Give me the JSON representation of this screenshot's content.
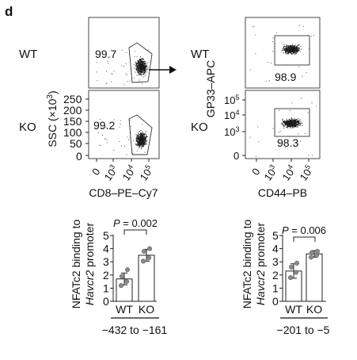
{
  "panel_label": "d",
  "flow": {
    "row_labels": [
      "WT",
      "KO"
    ],
    "left": {
      "percents": [
        "99.7",
        "99.2"
      ],
      "ylabel": "SSC (×10",
      "ylabel_exp": "3",
      "ylabel_close": ")",
      "yticks": [
        "250",
        "200",
        "150",
        "100",
        "50",
        "0"
      ],
      "xticks": [
        "0",
        "10",
        "10",
        "10"
      ],
      "xtick_exps": [
        "",
        "3",
        "4",
        "5"
      ],
      "xlabel": "CD8–PE–Cy7"
    },
    "right": {
      "percents": [
        "98.9",
        "98.3"
      ],
      "ylabel": "GP33–APC",
      "yticks": [
        "10",
        "10",
        "10",
        "0"
      ],
      "ytick_exps": [
        "5",
        "4",
        "3",
        ""
      ],
      "xticks": [
        "0",
        "10",
        "10",
        "10"
      ],
      "xtick_exps": [
        "",
        "3",
        "4",
        "5"
      ],
      "xlabel": "CD44–PB"
    }
  },
  "chart_data": [
    {
      "type": "bar",
      "categories": [
        "WT",
        "KO"
      ],
      "values": [
        1.7,
        3.5
      ],
      "error": [
        0.45,
        0.45
      ],
      "points": [
        [
          1.2,
          1.5,
          1.9,
          2.4
        ],
        [
          3.05,
          3.3,
          3.8,
          4.0
        ]
      ],
      "ylabel_line1": "NFATc2 binding to",
      "ylabel_line2_italic": "Havcr2",
      "ylabel_line2_rest": " promoter",
      "yticks": [
        "0",
        "1",
        "2",
        "3",
        "4",
        "5"
      ],
      "ylim": [
        0,
        5
      ],
      "pvalue_italic": "P",
      "pvalue_rest": " = 0.002",
      "region": "−432 to −161"
    },
    {
      "type": "bar",
      "categories": [
        "WT",
        "KO"
      ],
      "values": [
        2.3,
        3.6
      ],
      "error": [
        0.55,
        0.25
      ],
      "points": [
        [
          1.8,
          2.2,
          2.6,
          2.9
        ],
        [
          3.35,
          3.5,
          3.7,
          3.8
        ]
      ],
      "ylabel_line1": "NFATc2 binding to",
      "ylabel_line2_italic": "Havcr2",
      "ylabel_line2_rest": " promoter",
      "yticks": [
        "0",
        "1",
        "2",
        "3",
        "4",
        "5"
      ],
      "ylim": [
        0,
        5
      ],
      "pvalue_italic": "P",
      "pvalue_rest": " = 0.006",
      "region": "−201 to −5"
    }
  ]
}
